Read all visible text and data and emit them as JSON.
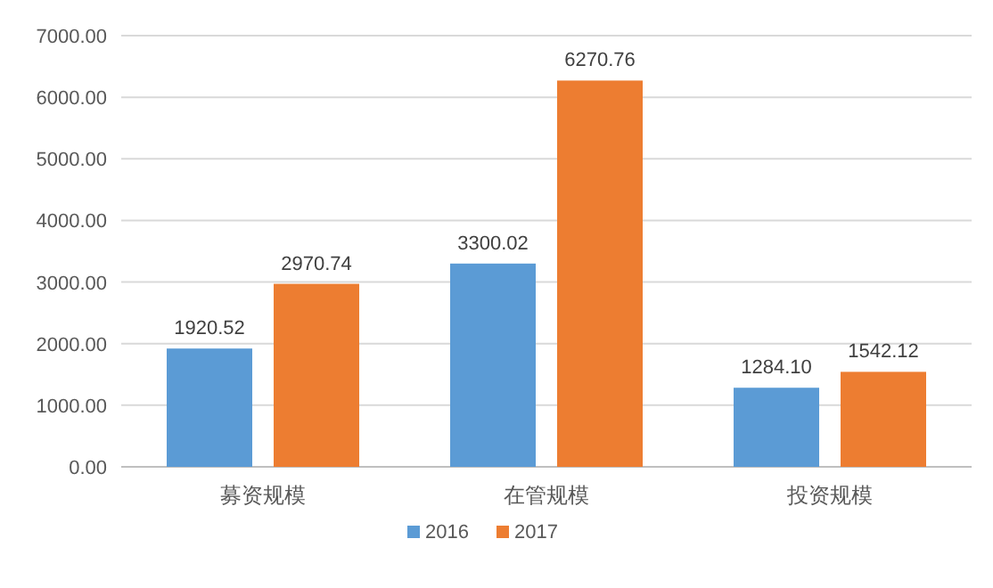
{
  "chart_data": {
    "type": "bar",
    "categories": [
      "募资规模",
      "在管规模",
      "投资规模"
    ],
    "series": [
      {
        "name": "2016",
        "color": "#5b9bd5",
        "values": [
          1920.52,
          3300.02,
          1284.1
        ],
        "value_labels": [
          "1920.52",
          "3300.02",
          "1284.10"
        ]
      },
      {
        "name": "2017",
        "color": "#ed7d31",
        "values": [
          2970.74,
          6270.76,
          1542.12
        ],
        "value_labels": [
          "2970.74",
          "6270.76",
          "1542.12"
        ]
      }
    ],
    "ylim": [
      0,
      7000
    ],
    "yticks": [
      {
        "value": 0,
        "label": "0.00"
      },
      {
        "value": 1000,
        "label": "1000.00"
      },
      {
        "value": 2000,
        "label": "2000.00"
      },
      {
        "value": 3000,
        "label": "3000.00"
      },
      {
        "value": 4000,
        "label": "4000.00"
      },
      {
        "value": 5000,
        "label": "5000.00"
      },
      {
        "value": 6000,
        "label": "6000.00"
      },
      {
        "value": 7000,
        "label": "7000.00"
      }
    ],
    "grid": "y",
    "legend": "bottom"
  }
}
